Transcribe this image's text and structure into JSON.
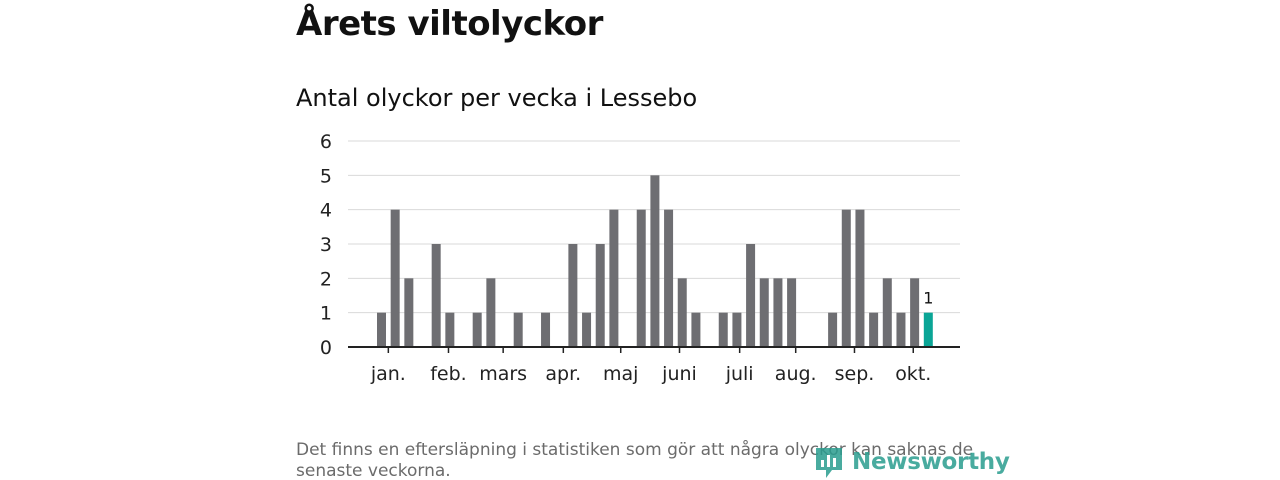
{
  "title": "Årets viltolyckor",
  "subtitle": "Antal olyckor per vecka i Lessebo",
  "footnote": "Det finns en eftersläpning i statistiken som gör att några olyckor kan saknas de senaste veckorna.",
  "logo": {
    "text": "Newsworthy"
  },
  "colors": {
    "bar": "#6e6e72",
    "highlight": "#0aa596",
    "grid": "#d9d9d9",
    "axis": "#222222",
    "logo": "#2a9d8f"
  },
  "chart_data": {
    "type": "bar",
    "title": "Antal olyckor per vecka i Lessebo",
    "xlabel": "",
    "ylabel": "",
    "ylim": [
      0,
      6
    ],
    "yticks": [
      0,
      1,
      2,
      3,
      4,
      5,
      6
    ],
    "grid": true,
    "weeks": [
      1,
      2,
      3,
      4,
      5,
      6,
      7,
      8,
      9,
      10,
      11,
      12,
      13,
      14,
      15,
      16,
      17,
      18,
      19,
      20,
      21,
      22,
      23,
      24,
      25,
      26,
      27,
      28,
      29,
      30,
      31,
      32,
      33,
      34,
      35,
      36,
      37,
      38,
      39,
      40,
      41
    ],
    "values": [
      1,
      4,
      2,
      0,
      3,
      1,
      0,
      1,
      2,
      0,
      1,
      0,
      1,
      0,
      3,
      1,
      3,
      4,
      0,
      4,
      5,
      4,
      2,
      1,
      0,
      1,
      1,
      3,
      2,
      2,
      2,
      0,
      0,
      1,
      4,
      4,
      1,
      2,
      1,
      2,
      1
    ],
    "highlight_index": 40,
    "highlight_label": "1",
    "month_labels": [
      {
        "label": "jan.",
        "week": 1.5
      },
      {
        "label": "feb.",
        "week": 5.9
      },
      {
        "label": "mars",
        "week": 9.9
      },
      {
        "label": "apr.",
        "week": 14.3
      },
      {
        "label": "maj",
        "week": 18.5
      },
      {
        "label": "juni",
        "week": 22.8
      },
      {
        "label": "juli",
        "week": 27.2
      },
      {
        "label": "aug.",
        "week": 31.3
      },
      {
        "label": "sep.",
        "week": 35.6
      },
      {
        "label": "okt.",
        "week": 39.9
      }
    ]
  }
}
